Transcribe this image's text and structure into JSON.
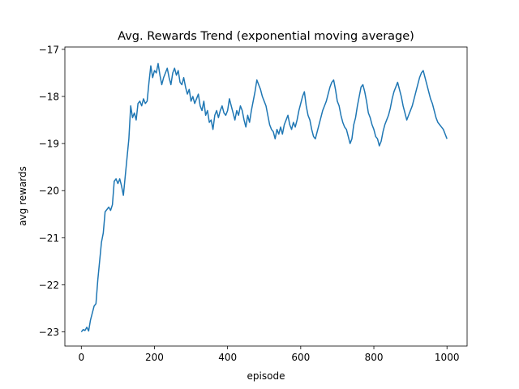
{
  "chart_data": {
    "type": "line",
    "title": "Avg. Rewards Trend (exponential moving average)",
    "xlabel": "episode",
    "ylabel": "avg rewards",
    "xlim": [
      -45,
      1055
    ],
    "ylim": [
      -23.3,
      -16.95
    ],
    "xticks": [
      0,
      200,
      400,
      600,
      800,
      1000
    ],
    "yticks": [
      -23,
      -22,
      -21,
      -20,
      -19,
      -18,
      -17
    ],
    "xtick_labels": [
      "0",
      "200",
      "400",
      "600",
      "800",
      "1000"
    ],
    "ytick_labels": [
      "−23",
      "−22",
      "−21",
      "−20",
      "−19",
      "−18",
      "−17"
    ],
    "grid": false,
    "series": [
      {
        "color": "#1f77b4",
        "x": [
          0,
          5,
          10,
          15,
          20,
          25,
          30,
          35,
          40,
          45,
          50,
          55,
          60,
          65,
          70,
          75,
          80,
          85,
          90,
          95,
          100,
          105,
          110,
          115,
          120,
          125,
          130,
          135,
          140,
          145,
          150,
          155,
          160,
          165,
          170,
          175,
          180,
          185,
          190,
          195,
          200,
          205,
          210,
          215,
          220,
          225,
          230,
          235,
          240,
          245,
          250,
          255,
          260,
          265,
          270,
          275,
          280,
          285,
          290,
          295,
          300,
          305,
          310,
          315,
          320,
          325,
          330,
          335,
          340,
          345,
          350,
          355,
          360,
          365,
          370,
          375,
          380,
          385,
          390,
          395,
          400,
          405,
          410,
          415,
          420,
          425,
          430,
          435,
          440,
          445,
          450,
          455,
          460,
          465,
          470,
          475,
          480,
          485,
          490,
          495,
          500,
          505,
          510,
          515,
          520,
          525,
          530,
          535,
          540,
          545,
          550,
          555,
          560,
          565,
          570,
          575,
          580,
          585,
          590,
          595,
          600,
          605,
          610,
          615,
          620,
          625,
          630,
          635,
          640,
          645,
          650,
          655,
          660,
          665,
          670,
          675,
          680,
          685,
          690,
          695,
          700,
          705,
          710,
          715,
          720,
          725,
          730,
          735,
          740,
          745,
          750,
          755,
          760,
          765,
          770,
          775,
          780,
          785,
          790,
          795,
          800,
          805,
          810,
          815,
          820,
          825,
          830,
          835,
          840,
          845,
          850,
          855,
          860,
          865,
          870,
          875,
          880,
          885,
          890,
          895,
          900,
          905,
          910,
          915,
          920,
          925,
          930,
          935,
          940,
          945,
          950,
          955,
          960,
          965,
          970,
          975,
          980,
          985,
          990,
          995,
          1000
        ],
        "y": [
          -23.0,
          -22.95,
          -22.97,
          -22.9,
          -22.98,
          -22.75,
          -22.6,
          -22.45,
          -22.4,
          -21.9,
          -21.5,
          -21.1,
          -20.9,
          -20.45,
          -20.4,
          -20.35,
          -20.42,
          -20.3,
          -19.8,
          -19.75,
          -19.85,
          -19.75,
          -19.9,
          -20.1,
          -19.7,
          -19.3,
          -18.9,
          -18.2,
          -18.45,
          -18.35,
          -18.5,
          -18.15,
          -18.1,
          -18.2,
          -18.05,
          -18.15,
          -18.1,
          -17.7,
          -17.35,
          -17.6,
          -17.45,
          -17.5,
          -17.3,
          -17.55,
          -17.75,
          -17.6,
          -17.5,
          -17.4,
          -17.6,
          -17.75,
          -17.5,
          -17.4,
          -17.55,
          -17.45,
          -17.7,
          -17.75,
          -17.6,
          -17.8,
          -17.95,
          -17.85,
          -18.1,
          -18.0,
          -18.15,
          -18.05,
          -17.95,
          -18.2,
          -18.3,
          -18.1,
          -18.4,
          -18.3,
          -18.55,
          -18.5,
          -18.7,
          -18.4,
          -18.3,
          -18.45,
          -18.3,
          -18.2,
          -18.35,
          -18.4,
          -18.3,
          -18.05,
          -18.2,
          -18.35,
          -18.5,
          -18.3,
          -18.4,
          -18.2,
          -18.3,
          -18.5,
          -18.65,
          -18.4,
          -18.55,
          -18.3,
          -18.1,
          -17.9,
          -17.65,
          -17.75,
          -17.85,
          -18.0,
          -18.1,
          -18.2,
          -18.4,
          -18.6,
          -18.7,
          -18.75,
          -18.9,
          -18.7,
          -18.8,
          -18.65,
          -18.8,
          -18.6,
          -18.5,
          -18.4,
          -18.6,
          -18.7,
          -18.55,
          -18.65,
          -18.5,
          -18.3,
          -18.15,
          -18.0,
          -17.9,
          -18.2,
          -18.4,
          -18.5,
          -18.7,
          -18.85,
          -18.9,
          -18.75,
          -18.6,
          -18.45,
          -18.3,
          -18.2,
          -18.1,
          -17.95,
          -17.8,
          -17.7,
          -17.65,
          -17.85,
          -18.1,
          -18.2,
          -18.4,
          -18.55,
          -18.65,
          -18.7,
          -18.85,
          -19.0,
          -18.9,
          -18.6,
          -18.45,
          -18.2,
          -18.0,
          -17.8,
          -17.75,
          -17.9,
          -18.1,
          -18.35,
          -18.45,
          -18.6,
          -18.7,
          -18.85,
          -18.9,
          -19.05,
          -18.95,
          -18.75,
          -18.6,
          -18.5,
          -18.4,
          -18.25,
          -18.05,
          -17.9,
          -17.8,
          -17.7,
          -17.85,
          -18.0,
          -18.2,
          -18.35,
          -18.5,
          -18.4,
          -18.3,
          -18.2,
          -18.05,
          -17.9,
          -17.75,
          -17.6,
          -17.5,
          -17.45,
          -17.6,
          -17.75,
          -17.9,
          -18.05,
          -18.15,
          -18.3,
          -18.45,
          -18.55,
          -18.6,
          -18.65,
          -18.7,
          -18.8,
          -18.9
        ]
      }
    ]
  }
}
